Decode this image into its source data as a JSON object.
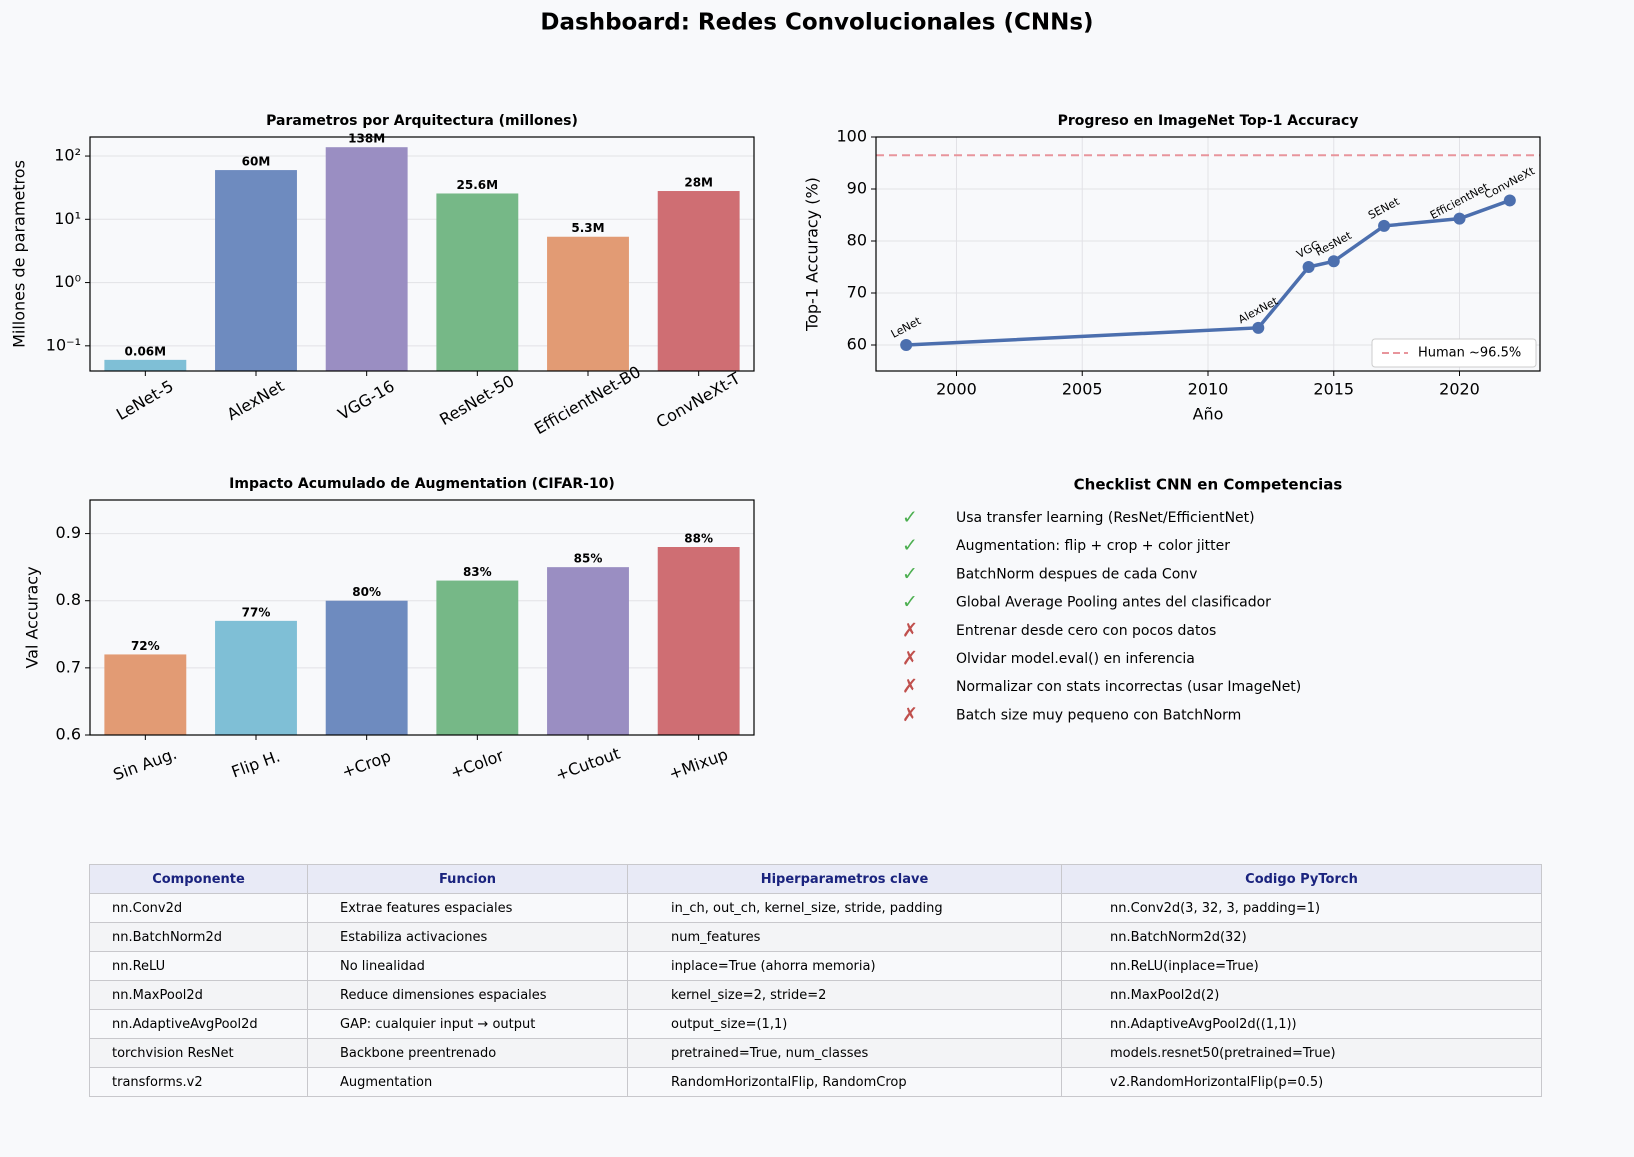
{
  "title": "Dashboard: Redes Convolucionales (CNNs)",
  "chart_data": [
    {
      "type": "bar",
      "title": "Parametros por Arquitectura (millones)",
      "ylabel": "Millones de parametros",
      "categories": [
        "LeNet-5",
        "AlexNet",
        "VGG-16",
        "ResNet-50",
        "EfficientNet-B0",
        "ConvNeXt-T"
      ],
      "values": [
        0.06,
        60,
        138,
        25.6,
        5.3,
        28
      ],
      "value_labels": [
        "0.06M",
        "60M",
        "138M",
        "25.6M",
        "5.3M",
        "28M"
      ],
      "colors": [
        "#7fbfd6",
        "#6e8bbf",
        "#9a8ec2",
        "#76b887",
        "#e29b74",
        "#cf6e73"
      ],
      "ylim": [
        0.04,
        200
      ],
      "yticks": [
        {
          "value": 0.1,
          "label": "10⁻¹"
        },
        {
          "value": 1,
          "label": "10⁰"
        },
        {
          "value": 10,
          "label": "10¹"
        },
        {
          "value": 100,
          "label": "10²"
        }
      ],
      "log_y": true,
      "grid": true
    },
    {
      "type": "line",
      "title": "Progreso en ImageNet Top-1 Accuracy",
      "xlabel": "Año",
      "ylabel": "Top-1 Accuracy (%)",
      "x": [
        1998,
        2012,
        2014,
        2015,
        2017,
        2020,
        2022
      ],
      "values": [
        60.0,
        63.3,
        75.0,
        76.1,
        82.9,
        84.3,
        87.8
      ],
      "point_labels": [
        "LeNet",
        "AlexNet",
        "VGG",
        "ResNet",
        "SENet",
        "EfficientNet",
        "ConvNeXt"
      ],
      "color": "#4c6fae",
      "xlim": [
        1996.8,
        2023.2
      ],
      "ylim": [
        55,
        100
      ],
      "xticks": [
        2000,
        2005,
        2010,
        2015,
        2020
      ],
      "yticks": [
        60,
        70,
        80,
        90,
        100
      ],
      "grid": true,
      "reference_line": {
        "name": "Human ~96.5%",
        "value": 96.5,
        "color": "#e8959c"
      },
      "legend": "lower right"
    },
    {
      "type": "bar",
      "title": "Impacto Acumulado de Augmentation (CIFAR-10)",
      "ylabel": "Val Accuracy",
      "categories": [
        "Sin Aug.",
        "Flip H.",
        "+Crop",
        "+Color",
        "+Cutout",
        "+Mixup"
      ],
      "values": [
        0.72,
        0.77,
        0.8,
        0.83,
        0.85,
        0.88
      ],
      "value_labels": [
        "72%",
        "77%",
        "80%",
        "83%",
        "85%",
        "88%"
      ],
      "colors": [
        "#e29b74",
        "#7fbfd6",
        "#6e8bbf",
        "#76b887",
        "#9a8ec2",
        "#cf6e73"
      ],
      "ylim": [
        0.6,
        0.95
      ],
      "yticks": [
        0.6,
        0.7,
        0.8,
        0.9
      ],
      "grid": true
    }
  ],
  "checklist": {
    "title": "Checklist CNN en Competencias",
    "items": [
      {
        "mark": "✓",
        "color": "#4caf50",
        "text": "Usa transfer learning (ResNet/EfficientNet)"
      },
      {
        "mark": "✓",
        "color": "#4caf50",
        "text": "Augmentation: flip + crop + color jitter"
      },
      {
        "mark": "✓",
        "color": "#4caf50",
        "text": "BatchNorm despues de cada Conv"
      },
      {
        "mark": "✓",
        "color": "#4caf50",
        "text": "Global Average Pooling antes del clasificador"
      },
      {
        "mark": "✗",
        "color": "#c0504d",
        "text": "Entrenar desde cero con pocos datos"
      },
      {
        "mark": "✗",
        "color": "#c0504d",
        "text": "Olvidar model.eval() en inferencia"
      },
      {
        "mark": "✗",
        "color": "#c0504d",
        "text": "Normalizar con stats incorrectas (usar ImageNet)"
      },
      {
        "mark": "✗",
        "color": "#c0504d",
        "text": "Batch size muy pequeno con BatchNorm"
      }
    ]
  },
  "table": {
    "columns": [
      "Componente",
      "Funcion",
      "Hiperparametros clave",
      "Codigo PyTorch"
    ],
    "rows": [
      [
        "nn.Conv2d",
        "Extrae features espaciales",
        "in_ch, out_ch, kernel_size, stride, padding",
        "nn.Conv2d(3, 32, 3, padding=1)"
      ],
      [
        "nn.BatchNorm2d",
        "Estabiliza activaciones",
        "num_features",
        "nn.BatchNorm2d(32)"
      ],
      [
        "nn.ReLU",
        "No linealidad",
        "inplace=True (ahorra memoria)",
        "nn.ReLU(inplace=True)"
      ],
      [
        "nn.MaxPool2d",
        "Reduce dimensiones espaciales",
        "kernel_size=2, stride=2",
        "nn.MaxPool2d(2)"
      ],
      [
        "nn.AdaptiveAvgPool2d",
        "GAP: cualquier input → output",
        "output_size=(1,1)",
        "nn.AdaptiveAvgPool2d((1,1))"
      ],
      [
        "torchvision ResNet",
        "Backbone preentrenado",
        "pretrained=True, num_classes",
        "models.resnet50(pretrained=True)"
      ],
      [
        "transforms.v2",
        "Augmentation",
        "RandomHorizontalFlip, RandomCrop",
        "v2.RandomHorizontalFlip(p=0.5)"
      ]
    ]
  }
}
